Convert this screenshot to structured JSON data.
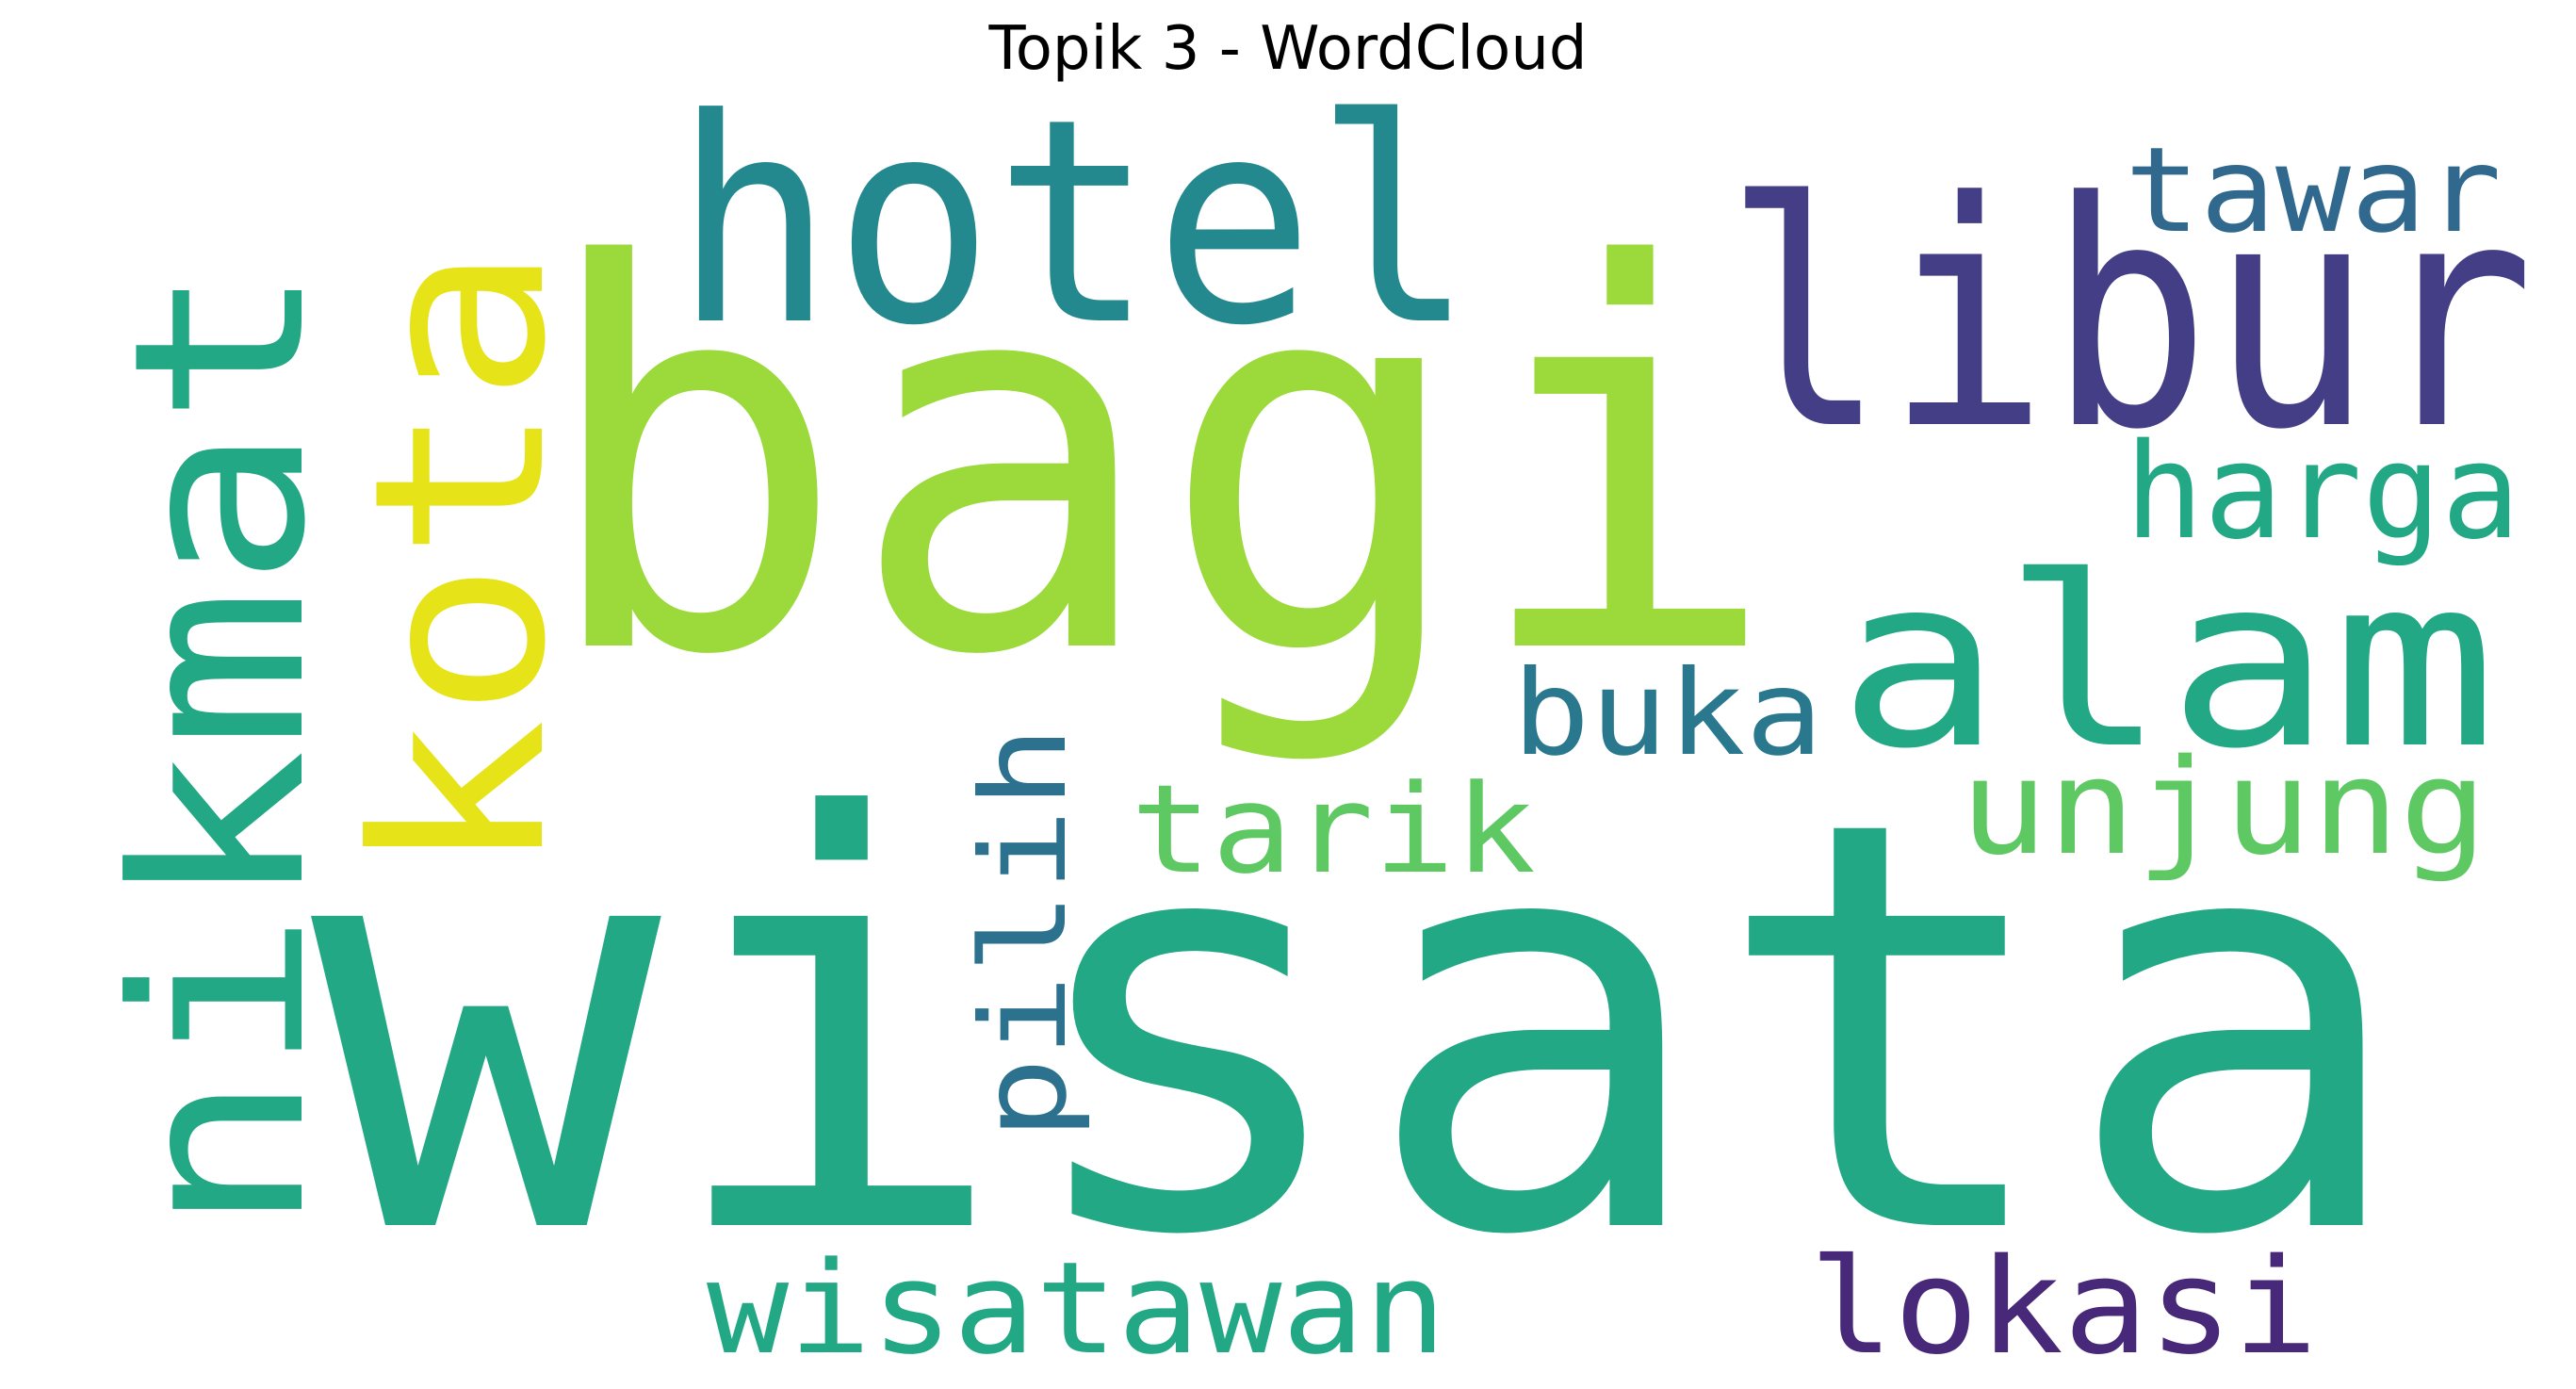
{
  "chart_data": {
    "type": "wordcloud",
    "title": "Topik 3 - WordCloud",
    "words": [
      {
        "text": "wisata",
        "color": "#22a884",
        "orientation": "horizontal"
      },
      {
        "text": "bagi",
        "color": "#9cd93b",
        "orientation": "horizontal"
      },
      {
        "text": "libur",
        "color": "#433e85",
        "orientation": "horizontal"
      },
      {
        "text": "hotel",
        "color": "#23898e",
        "orientation": "horizontal"
      },
      {
        "text": "nikmat",
        "color": "#22a884",
        "orientation": "vertical"
      },
      {
        "text": "kota",
        "color": "#e6e419",
        "orientation": "vertical"
      },
      {
        "text": "alam",
        "color": "#22a884",
        "orientation": "horizontal"
      },
      {
        "text": "lokasi",
        "color": "#482878",
        "orientation": "horizontal"
      },
      {
        "text": "wisatawan",
        "color": "#22a884",
        "orientation": "horizontal"
      },
      {
        "text": "unjung",
        "color": "#5ec962",
        "orientation": "horizontal"
      },
      {
        "text": "tarik",
        "color": "#5ec962",
        "orientation": "horizontal"
      },
      {
        "text": "harga",
        "color": "#22a884",
        "orientation": "horizontal"
      },
      {
        "text": "buka",
        "color": "#2a788e",
        "orientation": "horizontal"
      },
      {
        "text": "tawar",
        "color": "#31688e",
        "orientation": "horizontal"
      },
      {
        "text": "pilih",
        "color": "#2c728e",
        "orientation": "vertical"
      }
    ]
  }
}
